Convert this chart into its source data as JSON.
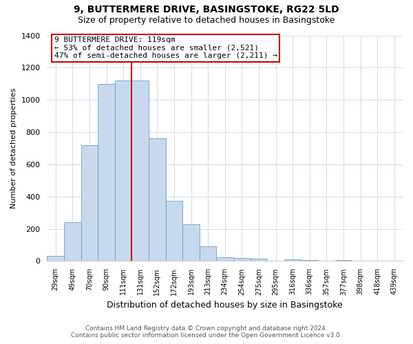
{
  "title1": "9, BUTTERMERE DRIVE, BASINGSTOKE, RG22 5LD",
  "title2": "Size of property relative to detached houses in Basingstoke",
  "xlabel": "Distribution of detached houses by size in Basingstoke",
  "ylabel": "Number of detached properties",
  "bar_labels": [
    "29sqm",
    "49sqm",
    "70sqm",
    "90sqm",
    "111sqm",
    "131sqm",
    "152sqm",
    "172sqm",
    "193sqm",
    "213sqm",
    "234sqm",
    "254sqm",
    "275sqm",
    "295sqm",
    "316sqm",
    "336sqm",
    "357sqm",
    "377sqm",
    "398sqm",
    "418sqm",
    "439sqm"
  ],
  "bar_heights": [
    30,
    240,
    720,
    1100,
    1120,
    1120,
    760,
    375,
    230,
    90,
    25,
    20,
    15,
    0,
    10,
    5,
    0,
    5,
    0,
    0,
    0
  ],
  "bar_color": "#c8d9ee",
  "bar_edge_color": "#6b9ec8",
  "vline_color": "#cc0000",
  "annotation_title": "9 BUTTERMERE DRIVE: 119sqm",
  "annotation_line1": "← 53% of detached houses are smaller (2,521)",
  "annotation_line2": "47% of semi-detached houses are larger (2,211) →",
  "annotation_box_color": "#ffffff",
  "annotation_box_edge": "#cc0000",
  "ylim": [
    0,
    1400
  ],
  "yticks": [
    0,
    200,
    400,
    600,
    800,
    1000,
    1200,
    1400
  ],
  "footnote1": "Contains HM Land Registry data © Crown copyright and database right 2024.",
  "footnote2": "Contains public sector information licensed under the Open Government Licence v3.0.",
  "bg_color": "#ffffff",
  "grid_color": "#d0dff0"
}
